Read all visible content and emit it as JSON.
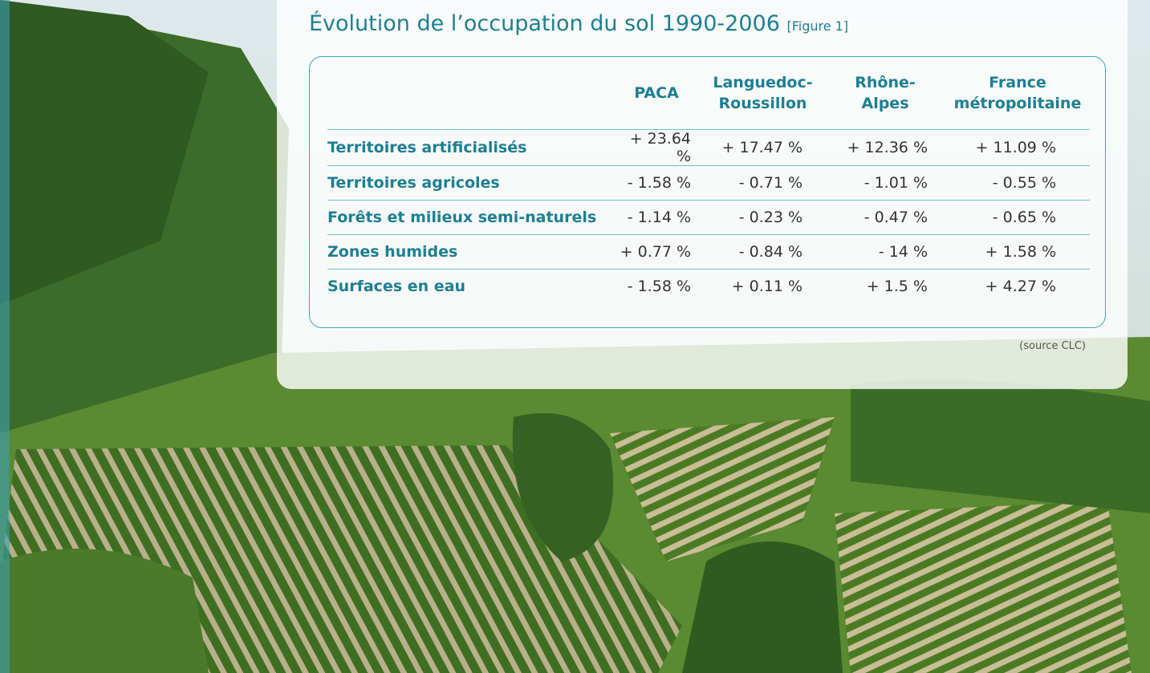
{
  "header": {
    "title": "Évolution de l’occupation du sol 1990-2006",
    "figure_ref": "[Figure 1]"
  },
  "table": {
    "columns": [
      [
        "PACA"
      ],
      [
        "Languedoc-",
        "Roussillon"
      ],
      [
        "Rhône-",
        "Alpes"
      ],
      [
        "France",
        "métropolitaine"
      ]
    ],
    "rows": [
      {
        "label": "Territoires artificialisés",
        "values": [
          "+ 23.64 %",
          "+ 17.47 %",
          "+ 12.36 %",
          "+ 11.09 %"
        ]
      },
      {
        "label": "Territoires agricoles",
        "values": [
          "- 1.58 %",
          "- 0.71 %",
          "- 1.01 %",
          "- 0.55 %"
        ]
      },
      {
        "label": "Forêts et milieux semi-naturels",
        "values": [
          "- 1.14 %",
          "- 0.23 %",
          "- 0.47 %",
          "- 0.65 %"
        ]
      },
      {
        "label": "Zones humides",
        "values": [
          "+ 0.77 %",
          "- 0.84 %",
          "- 14 %",
          "+ 1.58 %"
        ]
      },
      {
        "label": "Surfaces en eau",
        "values": [
          "- 1.58 %",
          "+ 0.11 %",
          "+ 1.5 %",
          "+ 4.27 %"
        ]
      }
    ]
  },
  "source": "(source CLC)"
}
